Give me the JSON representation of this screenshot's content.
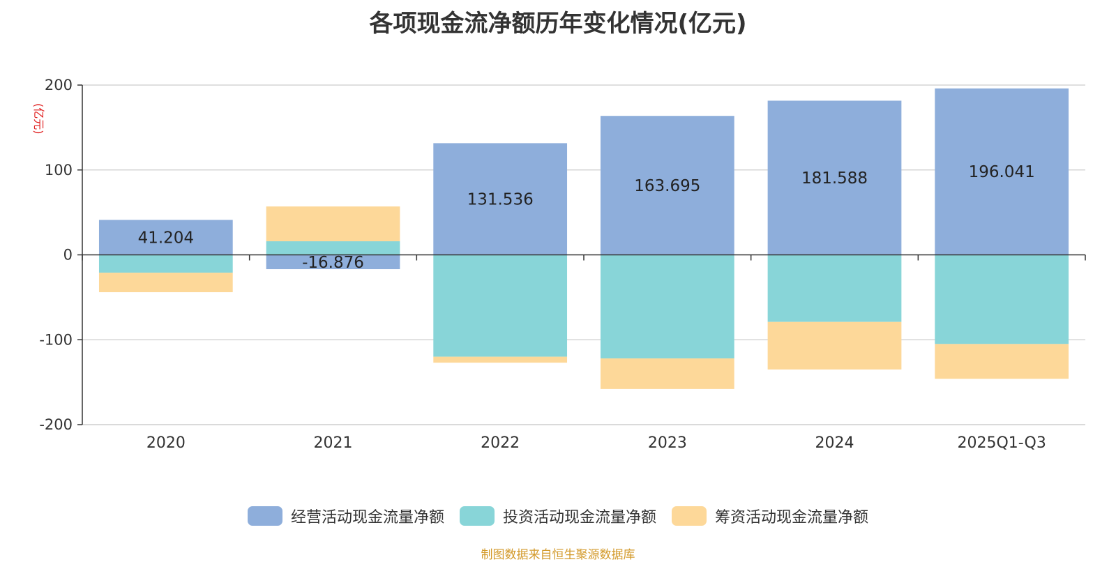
{
  "chart_data": {
    "type": "bar",
    "stacked": true,
    "title": "各项现金流净额历年变化情况(亿元)",
    "ylabel": "(亿元)",
    "ylim": [
      -200,
      200
    ],
    "yticks": [
      -200,
      -100,
      0,
      100,
      200
    ],
    "categories": [
      "2020",
      "2021",
      "2022",
      "2023",
      "2024",
      "2025Q1-Q3"
    ],
    "series": [
      {
        "name": "经营活动现金流量净额",
        "color": "#8eaedb",
        "values": [
          41.204,
          -16.876,
          131.536,
          163.695,
          181.588,
          196.041
        ]
      },
      {
        "name": "投资活动现金流量净额",
        "color": "#88d5d8",
        "values": [
          -21,
          16,
          -120,
          -122,
          -79,
          -105
        ]
      },
      {
        "name": "筹资活动现金流量净额",
        "color": "#fdd899",
        "values": [
          -23,
          41,
          -7,
          -36,
          -56,
          -41
        ]
      }
    ],
    "data_labels": [
      "41.204",
      "-16.876",
      "131.536",
      "163.695",
      "181.588",
      "196.041"
    ],
    "grid": true,
    "legend_position": "bottom-center"
  },
  "source_note": "制图数据来自恒生聚源数据库"
}
